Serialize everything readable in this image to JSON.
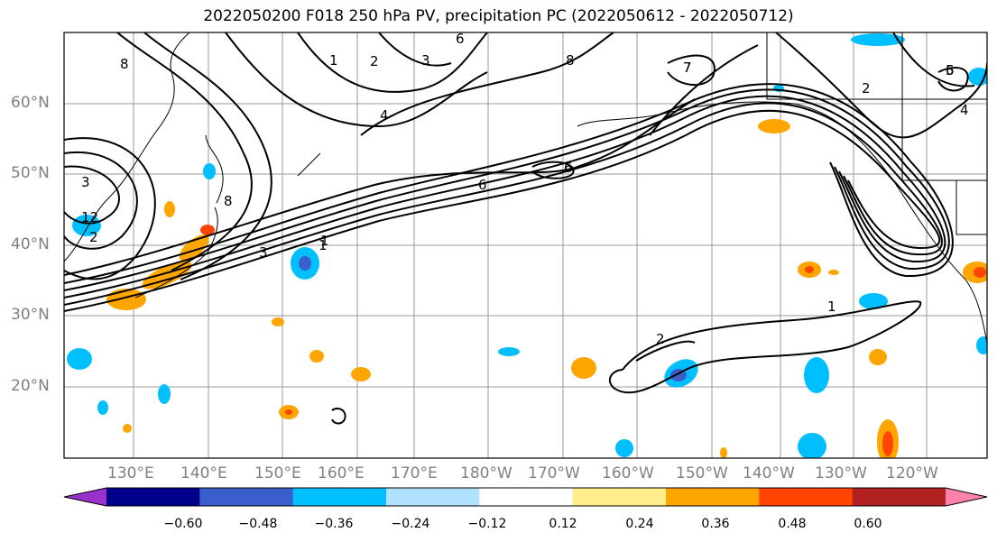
{
  "title": "2022050200 F018 250 hPa PV, precipitation PC (2022050612 - 2022050712)",
  "lat_labels": [
    "60°N",
    "50°N",
    "40°N",
    "30°N",
    "20°N"
  ],
  "lon_labels": [
    "130°E",
    "140°E",
    "150°E",
    "160°E",
    "170°E",
    "180°W",
    "170°W",
    "160°W",
    "150°W",
    "140°W",
    "130°W",
    "120°W"
  ],
  "contour_labels": [
    "6",
    "1",
    "2",
    "3",
    "4",
    "8",
    "7",
    "6",
    "5",
    "4",
    "2",
    "6",
    "1",
    "3",
    "12",
    "2",
    "8",
    "3",
    "6",
    "1",
    "1",
    "2",
    "7",
    "8"
  ],
  "colorbar": {
    "ticks": [
      "−0.60",
      "−0.48",
      "−0.36",
      "−0.24",
      "−0.12",
      "0.12",
      "0.24",
      "0.36",
      "0.48",
      "0.60"
    ],
    "colors": [
      "#9932cc",
      "#00008b",
      "#3a5fcd",
      "#00bfff",
      "#b0e2ff",
      "#ffffff",
      "#ffec8b",
      "#ffa500",
      "#ff4500",
      "#b22222",
      "#ff82ab"
    ]
  }
}
